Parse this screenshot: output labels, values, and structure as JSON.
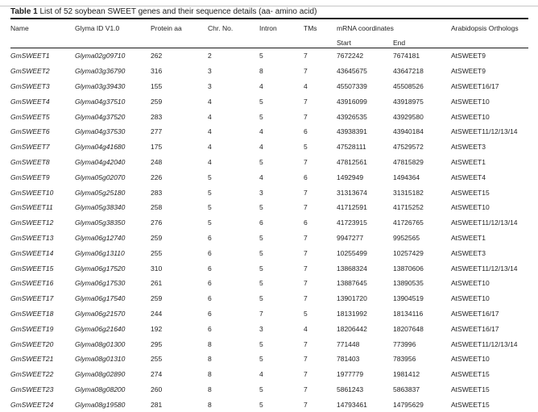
{
  "page": {
    "background": "#ffffff",
    "text_color": "#1f1f1f",
    "rule_color": "#1a1a1a",
    "top_line_color": "#c6c6c6"
  },
  "table": {
    "caption_label": "Table 1",
    "caption_text": "List of 52 soybean SWEET genes and their sequence details (aa- amino acid)",
    "headers": {
      "name": "Name",
      "glyma_id": "Glyma ID V1.0",
      "protein_aa": "Protein aa",
      "chr_no": "Chr. No.",
      "intron": "Intron",
      "tms": "TMs",
      "mrna_coordinates": "mRNA coordinates",
      "start": "Start",
      "end": "End",
      "orthologs": "Arabidopsis Orthologs"
    },
    "rows": [
      [
        "GmSWEET1",
        "Glyma02g09710",
        "262",
        "2",
        "5",
        "7",
        "7672242",
        "7674181",
        "AtSWEET9"
      ],
      [
        "GmSWEET2",
        "Glyma03g36790",
        "316",
        "3",
        "8",
        "7",
        "43645675",
        "43647218",
        "AtSWEET9"
      ],
      [
        "GmSWEET3",
        "Glyma03g39430",
        "155",
        "3",
        "4",
        "4",
        "45507339",
        "45508526",
        "AtSWEET16/17"
      ],
      [
        "GmSWEET4",
        "Glyma04g37510",
        "259",
        "4",
        "5",
        "7",
        "43916099",
        "43918975",
        "AtSWEET10"
      ],
      [
        "GmSWEET5",
        "Glyma04g37520",
        "283",
        "4",
        "5",
        "7",
        "43926535",
        "43929580",
        "AtSWEET10"
      ],
      [
        "GmSWEET6",
        "Glyma04g37530",
        "277",
        "4",
        "4",
        "6",
        "43938391",
        "43940184",
        "AtSWEET11/12/13/14"
      ],
      [
        "GmSWEET7",
        "Glyma04g41680",
        "175",
        "4",
        "4",
        "5",
        "47528111",
        "47529572",
        "AtSWEET3"
      ],
      [
        "GmSWEET8",
        "Glyma04g42040",
        "248",
        "4",
        "5",
        "7",
        "47812561",
        "47815829",
        "AtSWEET1"
      ],
      [
        "GmSWEET9",
        "Glyma05g02070",
        "226",
        "5",
        "4",
        "6",
        "1492949",
        "1494364",
        "AtSWEET4"
      ],
      [
        "GmSWEET10",
        "Glyma05g25180",
        "283",
        "5",
        "3",
        "7",
        "31313674",
        "31315182",
        "AtSWEET15"
      ],
      [
        "GmSWEET11",
        "Glyma05g38340",
        "258",
        "5",
        "5",
        "7",
        "41712591",
        "41715252",
        "AtSWEET10"
      ],
      [
        "GmSWEET12",
        "Glyma05g38350",
        "276",
        "5",
        "6",
        "6",
        "41723915",
        "41726765",
        "AtSWEET11/12/13/14"
      ],
      [
        "GmSWEET13",
        "Glyma06g12740",
        "259",
        "6",
        "5",
        "7",
        "9947277",
        "9952565",
        "AtSWEET1"
      ],
      [
        "GmSWEET14",
        "Glyma06g13110",
        "255",
        "6",
        "5",
        "7",
        "10255499",
        "10257429",
        "AtSWEET3"
      ],
      [
        "GmSWEET15",
        "Glyma06g17520",
        "310",
        "6",
        "5",
        "7",
        "13868324",
        "13870606",
        "AtSWEET11/12/13/14"
      ],
      [
        "GmSWEET16",
        "Glyma06g17530",
        "261",
        "6",
        "5",
        "7",
        "13887645",
        "13890535",
        "AtSWEET10"
      ],
      [
        "GmSWEET17",
        "Glyma06g17540",
        "259",
        "6",
        "5",
        "7",
        "13901720",
        "13904519",
        "AtSWEET10"
      ],
      [
        "GmSWEET18",
        "Glyma06g21570",
        "244",
        "6",
        "7",
        "5",
        "18131992",
        "18134116",
        "AtSWEET16/17"
      ],
      [
        "GmSWEET19",
        "Glyma06g21640",
        "192",
        "6",
        "3",
        "4",
        "18206442",
        "18207648",
        "AtSWEET16/17"
      ],
      [
        "GmSWEET20",
        "Glyma08g01300",
        "295",
        "8",
        "5",
        "7",
        "771448",
        "773996",
        "AtSWEET11/12/13/14"
      ],
      [
        "GmSWEET21",
        "Glyma08g01310",
        "255",
        "8",
        "5",
        "7",
        "781403",
        "783956",
        "AtSWEET10"
      ],
      [
        "GmSWEET22",
        "Glyma08g02890",
        "274",
        "8",
        "4",
        "7",
        "1977779",
        "1981412",
        "AtSWEET15"
      ],
      [
        "GmSWEET23",
        "Glyma08g08200",
        "260",
        "8",
        "5",
        "7",
        "5861243",
        "5863837",
        "AtSWEET15"
      ],
      [
        "GmSWEET24",
        "Glyma08g19580",
        "281",
        "8",
        "5",
        "7",
        "14793461",
        "14795629",
        "AtSWEET15"
      ]
    ]
  }
}
